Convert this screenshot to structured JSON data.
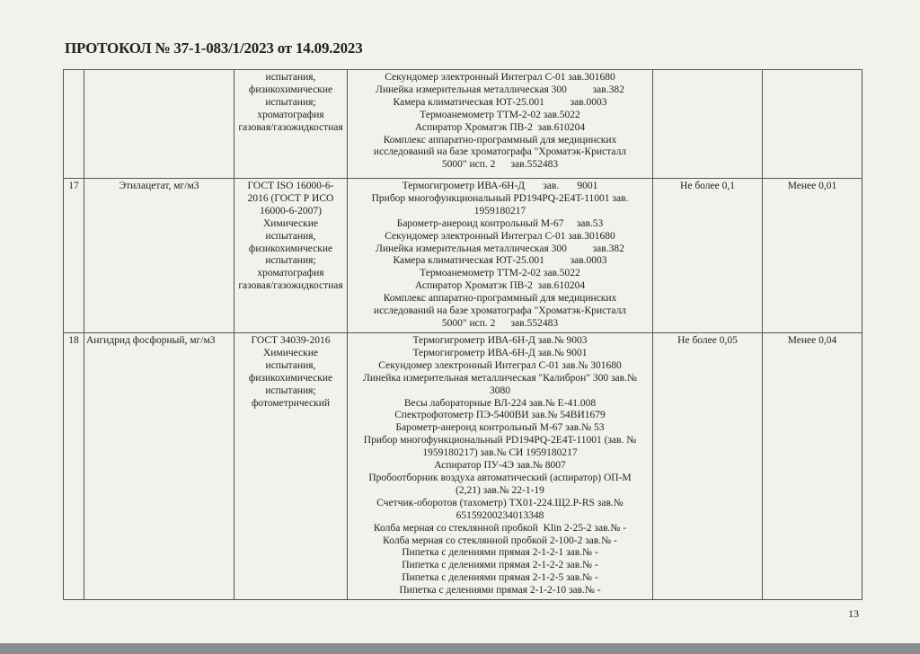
{
  "title": "ПРОТОКОЛ № 37-1-083/1/2023 от 14.09.2023",
  "rows": [
    {
      "num": "",
      "name": "",
      "method": [
        "испытания,",
        "физикохимические",
        "испытания;",
        "хроматография",
        "газовая/газожидкостная"
      ],
      "equipment": [
        "Секундомер электронный Интеграл С-01 зав.301680",
        "Линейка измерительная металлическая 300          зав.382",
        "Камера климатическая ЮТ-25.001          зав.0003",
        "Термоанемометр ТТМ-2-02 зав.5022",
        "Аспиратор Хроматэк ПВ-2  зав.610204",
        "Комплекс аппаратно-программный для медицинских",
        "исследований на базе хроматографа \"Хроматэк-Кристалл",
        "5000\" исп. 2      зав.552483"
      ],
      "norm": "",
      "result": ""
    },
    {
      "num": "17",
      "name": "Этилацетат, мг/м3",
      "method": [
        "ГОСТ ISO 16000-6-",
        "2016 (ГОСТ Р ИСО",
        "16000-6-2007)",
        "Химические",
        "испытания,",
        "физикохимические",
        "испытания;",
        "хроматография",
        "газовая/газожидкостная"
      ],
      "equipment": [
        "Термогигрометр ИВА-6Н-Д       зав.       9001",
        "Прибор многофункциональный PD194PQ-2E4T-11001 зав.",
        "1959180217",
        "Барометр-анероид контрольный М-67     зав.53",
        "Секундомер электронный Интеграл С-01 зав.301680",
        "Линейка измерительная металлическая 300          зав.382",
        "Камера климатическая ЮТ-25.001          зав.0003",
        "Термоанемометр ТТМ-2-02 зав.5022",
        "Аспиратор Хроматэк ПВ-2  зав.610204",
        "Комплекс аппаратно-программный для медицинских",
        "исследований на базе хроматографа \"Хроматэк-Кристалл",
        "5000\" исп. 2      зав.552483"
      ],
      "norm": "Не более 0,1",
      "result": "Менее 0,01"
    },
    {
      "num": "18",
      "name": "Ангидрид фосфорный, мг/м3",
      "method": [
        "ГОСТ 34039-2016",
        "Химические",
        "испытания,",
        "физикохимические",
        "испытания;",
        "фотометрический"
      ],
      "equipment": [
        "Термогигрометр ИВА-6Н-Д зав.№ 9003",
        "Термогигрометр ИВА-6Н-Д зав.№ 9001",
        "Секундомер электронный Интеграл С-01 зав.№ 301680",
        "Линейка измерительная металлическая \"Калиброн\" 300 зав.№",
        "3080",
        "Весы лабораторные ВЛ-224 зав.№ Е-41.008",
        "Спектрофотометр ПЭ-5400ВИ зав.№ 54ВИ1679",
        "Барометр-анероид контрольный М-67 зав.№ 53",
        "Прибор многофункциональный PD194PQ-2E4T-11001 (зав. №",
        "1959180217) зав.№ СИ 1959180217",
        "Аспиратор ПУ-4Э зав.№ 8007",
        "Пробоотборник воздуха автоматический (аспиратор) ОП-М",
        "(2,21) зав.№ 22-1-19",
        "Счетчик-оборотов (тахометр) ТХ01-224.Щ2.P-RS зав.№",
        "65159200234013348",
        "Колба мерная со стеклянной пробкой  Klin 2-25-2 зав.№ -",
        "Колба мерная со стеклянной пробкой 2-100-2 зав.№ -",
        "Пипетка с делениями прямая 2-1-2-1 зав.№ -",
        "Пипетка с делениями прямая 2-1-2-2 зав.№ -",
        "Пипетка с делениями прямая 2-1-2-5 зав.№ -",
        "Пипетка с делениями прямая 2-1-2-10 зав.№ -"
      ],
      "norm": "Не более 0,05",
      "result": "Менее 0,04"
    }
  ],
  "page_number": "13"
}
